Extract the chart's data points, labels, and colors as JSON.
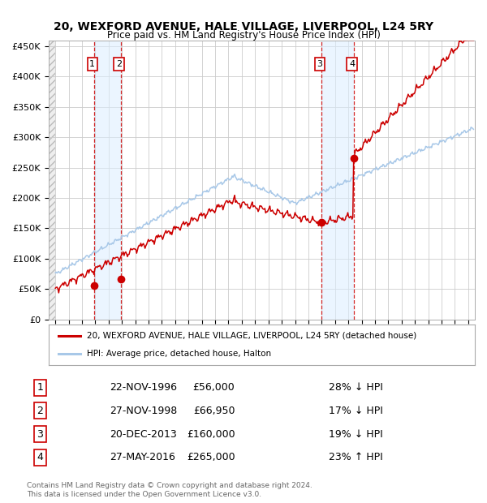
{
  "title1": "20, WEXFORD AVENUE, HALE VILLAGE, LIVERPOOL, L24 5RY",
  "title2": "Price paid vs. HM Land Registry's House Price Index (HPI)",
  "legend1": "20, WEXFORD AVENUE, HALE VILLAGE, LIVERPOOL, L24 5RY (detached house)",
  "legend2": "HPI: Average price, detached house, Halton",
  "footer1": "Contains HM Land Registry data © Crown copyright and database right 2024.",
  "footer2": "This data is licensed under the Open Government Licence v3.0.",
  "transactions": [
    {
      "num": 1,
      "date": "22-NOV-1996",
      "price": 56000,
      "pct": "28%",
      "dir": "↓",
      "x": 1996.9
    },
    {
      "num": 2,
      "date": "27-NOV-1998",
      "price": 66950,
      "pct": "17%",
      "dir": "↓",
      "x": 1998.9
    },
    {
      "num": 3,
      "date": "20-DEC-2013",
      "price": 160000,
      "pct": "19%",
      "dir": "↓",
      "x": 2013.97
    },
    {
      "num": 4,
      "date": "27-MAY-2016",
      "price": 265000,
      "pct": "23%",
      "dir": "↑",
      "x": 2016.4
    }
  ],
  "hpi_color": "#a8c8e8",
  "price_color": "#cc0000",
  "vline_color": "#cc0000",
  "shade_color": "#dceeff",
  "ylabel_ticks": [
    "£0",
    "£50K",
    "£100K",
    "£150K",
    "£200K",
    "£250K",
    "£300K",
    "£350K",
    "£400K",
    "£450K"
  ],
  "ytick_vals": [
    0,
    50000,
    100000,
    150000,
    200000,
    250000,
    300000,
    350000,
    400000,
    450000
  ],
  "xlim": [
    1993.5,
    2025.5
  ],
  "ylim": [
    0,
    460000
  ]
}
